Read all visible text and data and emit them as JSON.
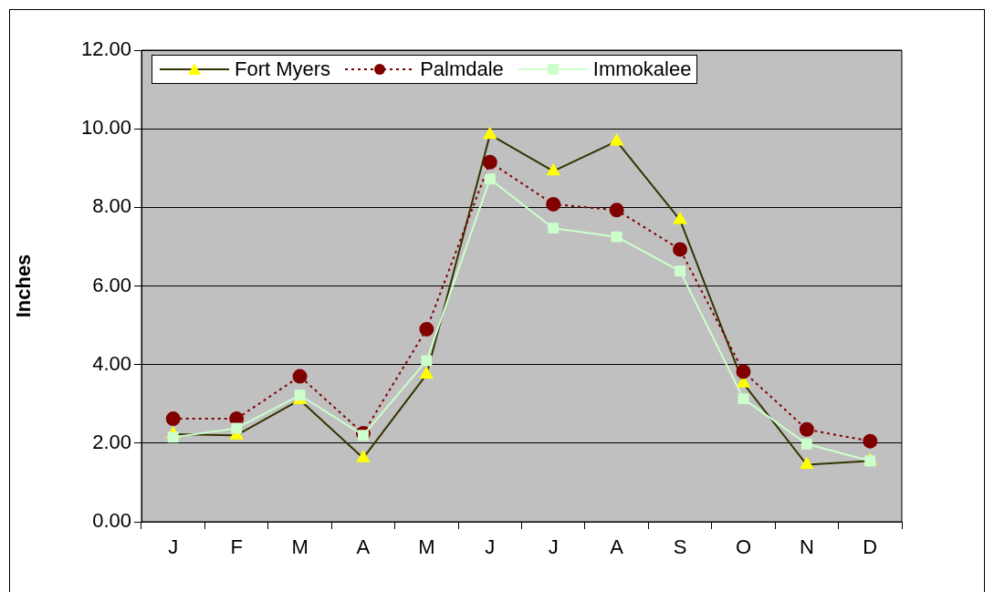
{
  "chart_data": {
    "type": "line",
    "ylabel": "Inches",
    "categories": [
      "J",
      "F",
      "M",
      "A",
      "M",
      "J",
      "J",
      "A",
      "S",
      "O",
      "N",
      "D"
    ],
    "series": [
      {
        "name": "Fort Myers",
        "color": "#333300",
        "colors": [
          "#ffff00",
          "#ffff00",
          "#ffff00",
          "#ffff00",
          "#ffff00",
          "#ffff00",
          "#ffff00",
          "#ffff00",
          "#ffff00",
          "#ffff00",
          "#ffff00",
          "#ffff00"
        ],
        "marker": "triangle",
        "line_style": "solid",
        "values": [
          2.23,
          2.2,
          3.1,
          1.62,
          3.75,
          9.85,
          8.92,
          9.68,
          7.68,
          3.52,
          1.45,
          1.55
        ]
      },
      {
        "name": "Palmdale",
        "color": "#800000",
        "marker": "circle",
        "line_style": "dotted",
        "values": [
          2.62,
          2.62,
          3.7,
          2.25,
          4.9,
          9.15,
          8.08,
          7.93,
          6.93,
          3.82,
          2.35,
          2.05
        ]
      },
      {
        "name": "Immokalee",
        "color": "#ccffcc",
        "marker": "square",
        "line_style": "solid",
        "values": [
          2.15,
          2.38,
          3.22,
          2.2,
          4.1,
          8.72,
          7.47,
          7.25,
          6.38,
          3.13,
          1.98,
          1.55
        ]
      }
    ],
    "ylim": [
      0,
      12
    ],
    "yticks": [
      {
        "value": 0,
        "label": "0.00"
      },
      {
        "value": 2,
        "label": "2.00"
      },
      {
        "value": 4,
        "label": "4.00"
      },
      {
        "value": 6,
        "label": "6.00"
      },
      {
        "value": 8,
        "label": "8.00"
      },
      {
        "value": 10,
        "label": "10.00"
      },
      {
        "value": 12,
        "label": "12.00"
      }
    ],
    "grid": "y",
    "legend": "top"
  }
}
